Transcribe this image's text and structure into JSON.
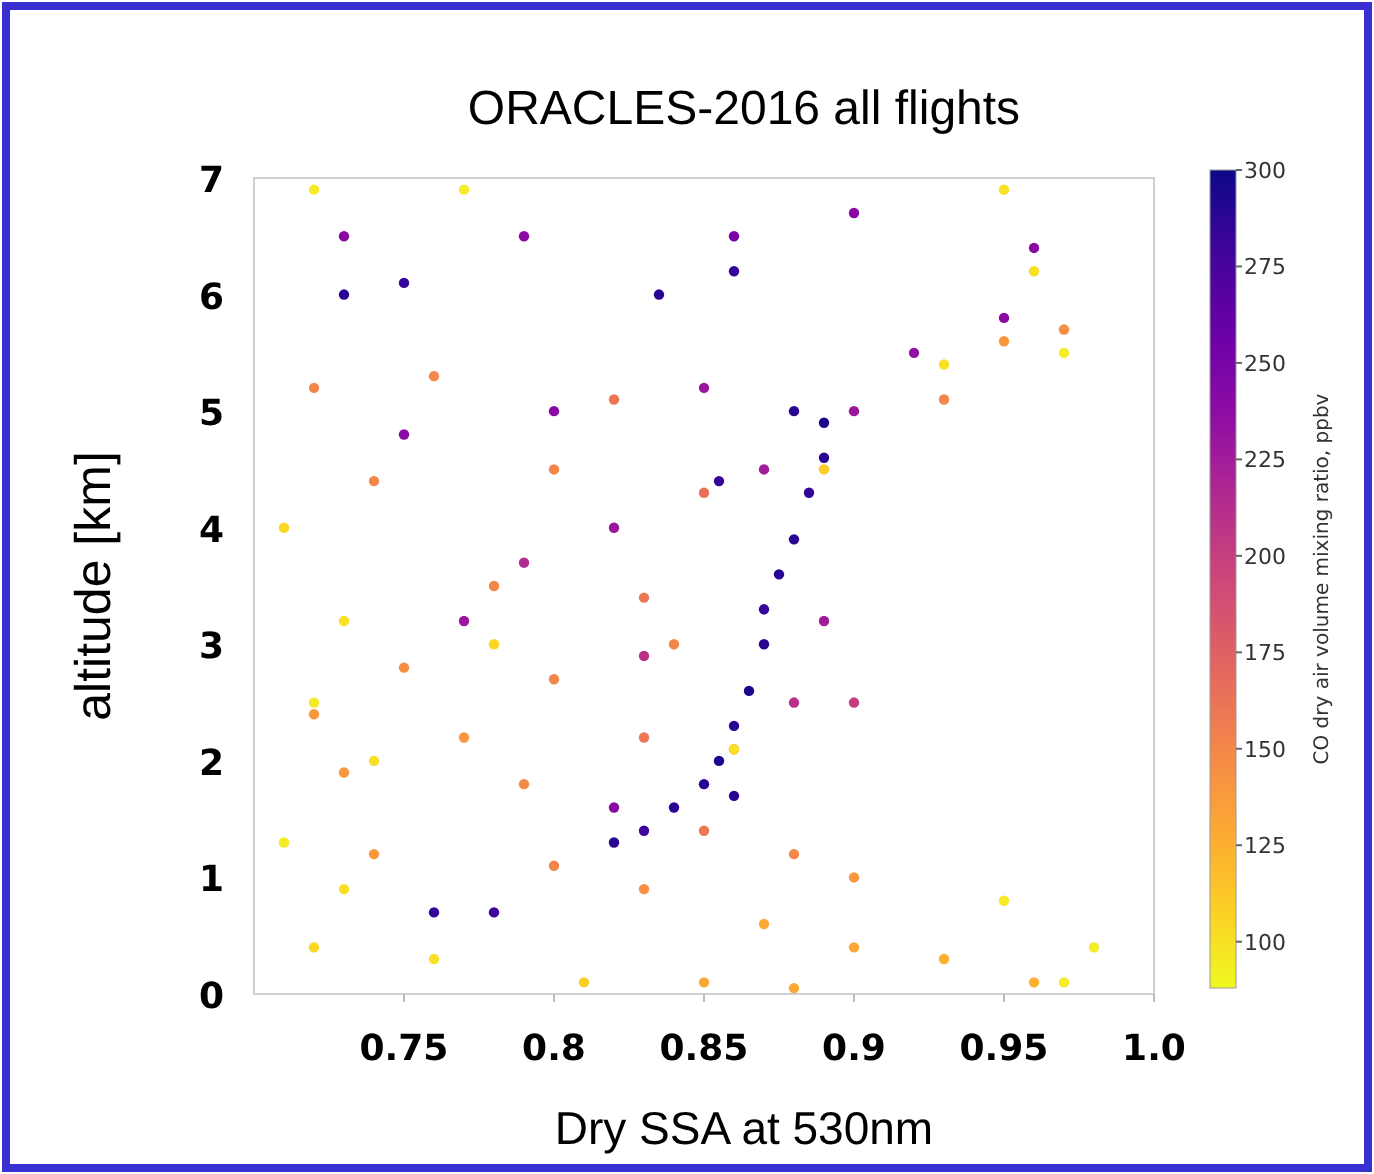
{
  "chart_data": {
    "type": "scatter",
    "title": "ORACLES-2016 all flights",
    "xlabel": "Dry SSA at 530nm",
    "ylabel": "altitude [km]",
    "clabel": "CO dry air volume mixing ratio, ppbv",
    "x": [
      0.84,
      0.85,
      0.855,
      0.86,
      0.865,
      0.87,
      0.87,
      0.875,
      0.88,
      0.885,
      0.89,
      0.89,
      0.88,
      0.83,
      0.82,
      0.86,
      0.855,
      0.86,
      0.835,
      0.75,
      0.73,
      0.78,
      0.76,
      0.86,
      0.96,
      0.79,
      0.73,
      0.9,
      0.95,
      0.92,
      0.9,
      0.85,
      0.8,
      0.75,
      0.87,
      0.89,
      0.88,
      0.9,
      0.82,
      0.79,
      0.77,
      0.83,
      0.82,
      0.72,
      0.76,
      0.82,
      0.93,
      0.95,
      0.97,
      0.74,
      0.8,
      0.85,
      0.78,
      0.83,
      0.84,
      0.75,
      0.8,
      0.72,
      0.77,
      0.83,
      0.86,
      0.73,
      0.79,
      0.85,
      0.88,
      0.9,
      0.74,
      0.8,
      0.83,
      0.87,
      0.9,
      0.93,
      0.85,
      0.96,
      0.88,
      0.72,
      0.77,
      0.95,
      0.96,
      0.97,
      0.93,
      0.71,
      0.73,
      0.72,
      0.74,
      0.71,
      0.73,
      0.72,
      0.76,
      0.95,
      0.98,
      0.97,
      0.86,
      0.89,
      0.78,
      0.81
    ],
    "values": [
      1.6,
      1.8,
      2.0,
      2.3,
      2.6,
      3.0,
      3.3,
      3.6,
      3.9,
      4.3,
      4.6,
      4.9,
      5.0,
      1.4,
      1.3,
      1.7,
      4.4,
      6.2,
      6.0,
      6.1,
      6.0,
      0.7,
      0.7,
      6.5,
      6.4,
      6.5,
      6.5,
      6.7,
      5.8,
      5.5,
      5.0,
      5.2,
      5.0,
      4.8,
      4.5,
      3.2,
      2.5,
      2.5,
      4.0,
      3.7,
      3.2,
      2.9,
      1.6,
      5.2,
      5.3,
      5.1,
      5.1,
      5.6,
      5.7,
      4.4,
      4.5,
      4.3,
      3.5,
      3.4,
      3.0,
      2.8,
      2.7,
      2.4,
      2.2,
      2.2,
      2.1,
      1.9,
      1.8,
      1.4,
      1.2,
      1.0,
      1.2,
      1.1,
      0.9,
      0.6,
      0.4,
      0.3,
      0.1,
      0.1,
      0.05,
      6.9,
      6.9,
      6.9,
      6.2,
      5.5,
      5.4,
      4.0,
      3.2,
      2.5,
      2.0,
      1.3,
      0.9,
      0.4,
      0.3,
      0.8,
      0.4,
      0.1,
      2.1,
      4.5,
      3.0,
      0.1
    ],
    "cvalues": [
      290,
      290,
      295,
      290,
      295,
      290,
      285,
      290,
      290,
      285,
      290,
      295,
      290,
      280,
      290,
      290,
      285,
      285,
      290,
      285,
      290,
      280,
      285,
      250,
      240,
      240,
      240,
      240,
      240,
      235,
      230,
      230,
      240,
      240,
      225,
      225,
      210,
      200,
      230,
      215,
      230,
      210,
      240,
      150,
      150,
      160,
      150,
      140,
      145,
      150,
      150,
      165,
      150,
      160,
      150,
      145,
      150,
      140,
      140,
      160,
      150,
      140,
      150,
      160,
      150,
      140,
      140,
      150,
      145,
      130,
      130,
      125,
      130,
      125,
      130,
      95,
      95,
      100,
      100,
      95,
      100,
      105,
      100,
      95,
      100,
      95,
      100,
      105,
      100,
      95,
      95,
      95,
      100,
      110,
      105,
      110
    ],
    "marker": "circle",
    "xlim": [
      0.7,
      1.0
    ],
    "xticks": [
      0.75,
      0.8,
      0.85,
      0.9,
      0.95,
      {
        "value": 1.0,
        "label": "1.0"
      }
    ],
    "ylim": [
      0,
      7
    ],
    "yticks": [
      0,
      1,
      2,
      3,
      4,
      5,
      6,
      7
    ],
    "clim": [
      88,
      300
    ],
    "cticks": [
      100,
      125,
      150,
      175,
      200,
      225,
      250,
      275,
      300
    ]
  }
}
